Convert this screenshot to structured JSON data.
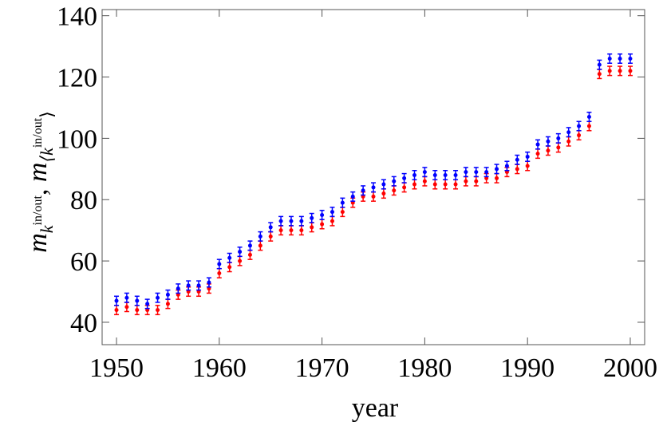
{
  "chart_data": {
    "type": "scatter",
    "x_label": "year",
    "y_label_parts": [
      "m",
      "k",
      "in/out",
      ", ",
      "m",
      "⟨k",
      "in/out",
      "⟩"
    ],
    "x": [
      1950,
      1951,
      1952,
      1953,
      1954,
      1955,
      1956,
      1957,
      1958,
      1959,
      1960,
      1961,
      1962,
      1963,
      1964,
      1965,
      1966,
      1967,
      1968,
      1969,
      1970,
      1971,
      1972,
      1973,
      1974,
      1975,
      1976,
      1977,
      1978,
      1979,
      1980,
      1981,
      1982,
      1983,
      1984,
      1985,
      1986,
      1987,
      1988,
      1989,
      1990,
      1991,
      1992,
      1993,
      1994,
      1995,
      1996,
      1997,
      1998,
      1999,
      2000
    ],
    "series": [
      {
        "color": "#ff0000",
        "values": [
          44,
          45,
          44,
          44,
          44,
          46,
          49,
          50,
          50,
          51,
          56,
          58,
          60,
          62,
          65,
          68,
          70,
          70,
          70,
          71,
          72,
          73,
          76,
          79,
          81,
          81,
          82,
          83,
          84,
          85,
          86,
          85,
          85,
          85,
          86,
          86,
          87,
          87,
          89,
          90,
          91,
          95,
          96,
          97,
          99,
          101,
          104,
          121,
          122,
          122,
          122
        ],
        "errors": [
          1.5,
          1.5,
          1.5,
          1.5,
          1.5,
          1.5,
          1.5,
          1.5,
          1.5,
          1.5,
          1.5,
          1.5,
          1.5,
          1.5,
          1.5,
          1.5,
          1.5,
          1.5,
          1.5,
          1.5,
          1.5,
          1.5,
          1.5,
          1.5,
          1.5,
          1.5,
          1.5,
          1.5,
          1.5,
          1.5,
          1.5,
          1.5,
          1.5,
          1.5,
          1.5,
          1.5,
          1.5,
          1.5,
          1.5,
          1.5,
          1.5,
          1.5,
          1.5,
          1.5,
          1.5,
          1.5,
          1.5,
          1.5,
          1.5,
          1.5,
          1.5
        ]
      },
      {
        "color": "#0000ff",
        "values": [
          47,
          48,
          47,
          46,
          48,
          49,
          51,
          52,
          52,
          53,
          59,
          61,
          63,
          65,
          68,
          71,
          73,
          73,
          73,
          74,
          75,
          76,
          79,
          81,
          83,
          84,
          85,
          86,
          87,
          88,
          89,
          88,
          88,
          88,
          89,
          89,
          89,
          90,
          91,
          93,
          94,
          98,
          99,
          100,
          102,
          104,
          107,
          124,
          126,
          126,
          126
        ],
        "errors": [
          1.5,
          1.5,
          1.5,
          1.5,
          1.5,
          1.5,
          1.5,
          1.5,
          1.5,
          1.5,
          1.5,
          1.5,
          1.5,
          1.5,
          1.5,
          1.5,
          1.5,
          1.5,
          1.5,
          1.5,
          1.5,
          1.5,
          1.5,
          1.5,
          1.5,
          1.5,
          1.5,
          1.5,
          1.5,
          1.5,
          1.5,
          1.5,
          1.5,
          1.5,
          1.5,
          1.5,
          1.5,
          1.5,
          1.5,
          1.5,
          1.5,
          1.5,
          1.5,
          1.5,
          1.5,
          1.5,
          1.5,
          1.5,
          1.5,
          1.5,
          1.5
        ]
      }
    ],
    "xlim": [
      1948.6,
      2001.4
    ],
    "xticks": [
      1950,
      1960,
      1970,
      1980,
      1990,
      2000
    ],
    "ylim": [
      32.7,
      142
    ],
    "yticks": [
      40,
      60,
      80,
      100,
      120,
      140
    ]
  }
}
